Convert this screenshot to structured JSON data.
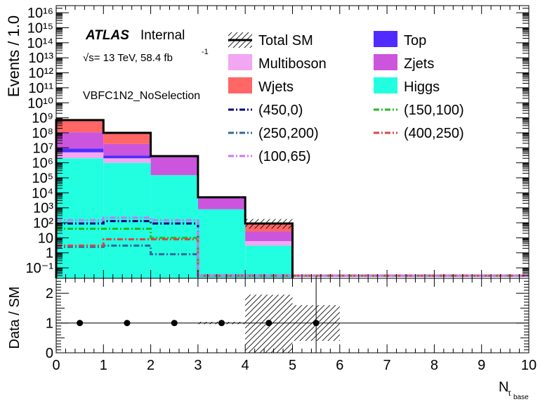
{
  "chart_data": [
    {
      "type": "bar",
      "stacked": true,
      "y_scale": "log",
      "ylim": [
        0.02,
        3e+16
      ],
      "xlim": [
        0,
        10
      ],
      "ylabel": "Events / 1.0",
      "xlabel_main": "N",
      "xlabel_sub1": "τ",
      "xlabel_sub2": "base",
      "atlas_label": "ATLAS",
      "atlas_status": "Internal",
      "energy_label": "√s= 13 TeV, 58.4 fb",
      "energy_exp": "-1",
      "region_label": "VBFC1N2_NoSelection",
      "bin_edges": [
        0,
        1,
        2,
        3,
        4,
        5,
        6,
        7,
        8,
        9,
        10
      ],
      "x_ticks": [
        0,
        1,
        2,
        3,
        4,
        5,
        6,
        7,
        8,
        9,
        10
      ],
      "y_tick_labels": [
        "10⁻¹",
        "1",
        "10",
        "10²",
        "10³",
        "10⁴",
        "10⁵",
        "10⁶",
        "10⁷",
        "10⁸",
        "10⁹",
        "10¹⁰",
        "10¹¹",
        "10¹²",
        "10¹³",
        "10¹⁴",
        "10¹⁵",
        "10¹⁶"
      ],
      "y_tick_values": [
        0.1,
        1,
        10,
        100,
        1000,
        10000,
        100000,
        1000000,
        10000000,
        100000000,
        1000000000,
        10000000000,
        100000000000,
        1000000000000,
        10000000000000,
        100000000000000,
        1000000000000000,
        10000000000000000
      ],
      "stack": [
        {
          "name": "Higgs",
          "color": "#22ffe0",
          "values": [
            2000000,
            1000000,
            150000,
            800,
            3,
            0,
            0,
            0,
            0,
            0
          ]
        },
        {
          "name": "Multiboson",
          "color": "#f2a7f2",
          "values": [
            3000000,
            1000000,
            0,
            0,
            3,
            0,
            0,
            0,
            0,
            0
          ]
        },
        {
          "name": "Top",
          "color": "#4f2bff",
          "values": [
            4000000,
            1000000,
            0,
            0,
            0,
            0,
            0,
            0,
            0,
            0
          ]
        },
        {
          "name": "Zjets",
          "color": "#cc55dd",
          "values": [
            100000000,
            15000000,
            2600000,
            4000,
            20,
            0,
            0,
            0,
            0,
            0
          ]
        },
        {
          "name": "Wjets",
          "color": "#ff6666",
          "values": [
            600000000,
            80000000,
            0,
            0,
            60,
            0,
            0,
            0,
            0,
            0
          ]
        }
      ],
      "total": {
        "name": "Total SM",
        "values": [
          700000000,
          100000000,
          2800000,
          5000,
          90,
          0,
          0,
          0,
          0,
          0
        ],
        "err_bin": 4
      },
      "signals": [
        {
          "name": "(450,0)",
          "color": "#000080",
          "values": [
            90,
            130,
            90,
            0.03,
            0.03,
            0.03,
            0.03,
            0.03,
            0.03,
            0.03
          ]
        },
        {
          "name": "(150,100)",
          "color": "#22bb22",
          "values": [
            40,
            40,
            10,
            0.03,
            0.03,
            0.03,
            0.03,
            0.03,
            0.03,
            0.03
          ]
        },
        {
          "name": "(250,200)",
          "color": "#336699",
          "values": [
            2.5,
            3,
            0.8,
            0.03,
            0.03,
            0.03,
            0.03,
            0.03,
            0.03,
            0.03
          ]
        },
        {
          "name": "(400,250)",
          "color": "#dd4444",
          "values": [
            3,
            8,
            8,
            0.03,
            0.03,
            0.03,
            0.03,
            0.03,
            0.03,
            0.03
          ]
        },
        {
          "name": "(100,65)",
          "color": "#cc77ee",
          "values": [
            150,
            220,
            150,
            0.03,
            0.03,
            0.03,
            0.03,
            0.03,
            0.03,
            0.03
          ]
        }
      ],
      "legend_rows": [
        [
          "Total SM",
          "Top"
        ],
        [
          "Multiboson",
          "Zjets"
        ],
        [
          "Wjets",
          "Higgs"
        ],
        [
          "(450,0)",
          "(150,100)"
        ],
        [
          "(250,200)",
          "(400,250)"
        ],
        [
          "(100,65)",
          ""
        ]
      ],
      "legend_placement": "top-right"
    },
    {
      "type": "scatter",
      "ylabel": "Data / SM",
      "ylim": [
        0,
        2.5
      ],
      "xlim": [
        0,
        10
      ],
      "y_ticks": [
        0,
        1,
        2
      ],
      "x": [
        0.5,
        1.5,
        2.5,
        3.5,
        4.5,
        5.5
      ],
      "y": [
        1,
        1,
        1,
        1,
        1,
        1
      ],
      "band": [
        {
          "x0": 4,
          "x1": 5,
          "lo": 0,
          "hi": 1.95
        },
        {
          "x0": 5,
          "x1": 6,
          "lo": 0.4,
          "hi": 1.6
        },
        {
          "x0": 3,
          "x1": 4,
          "lo": 0.96,
          "hi": 1.04
        }
      ],
      "reference_line": 1
    }
  ]
}
